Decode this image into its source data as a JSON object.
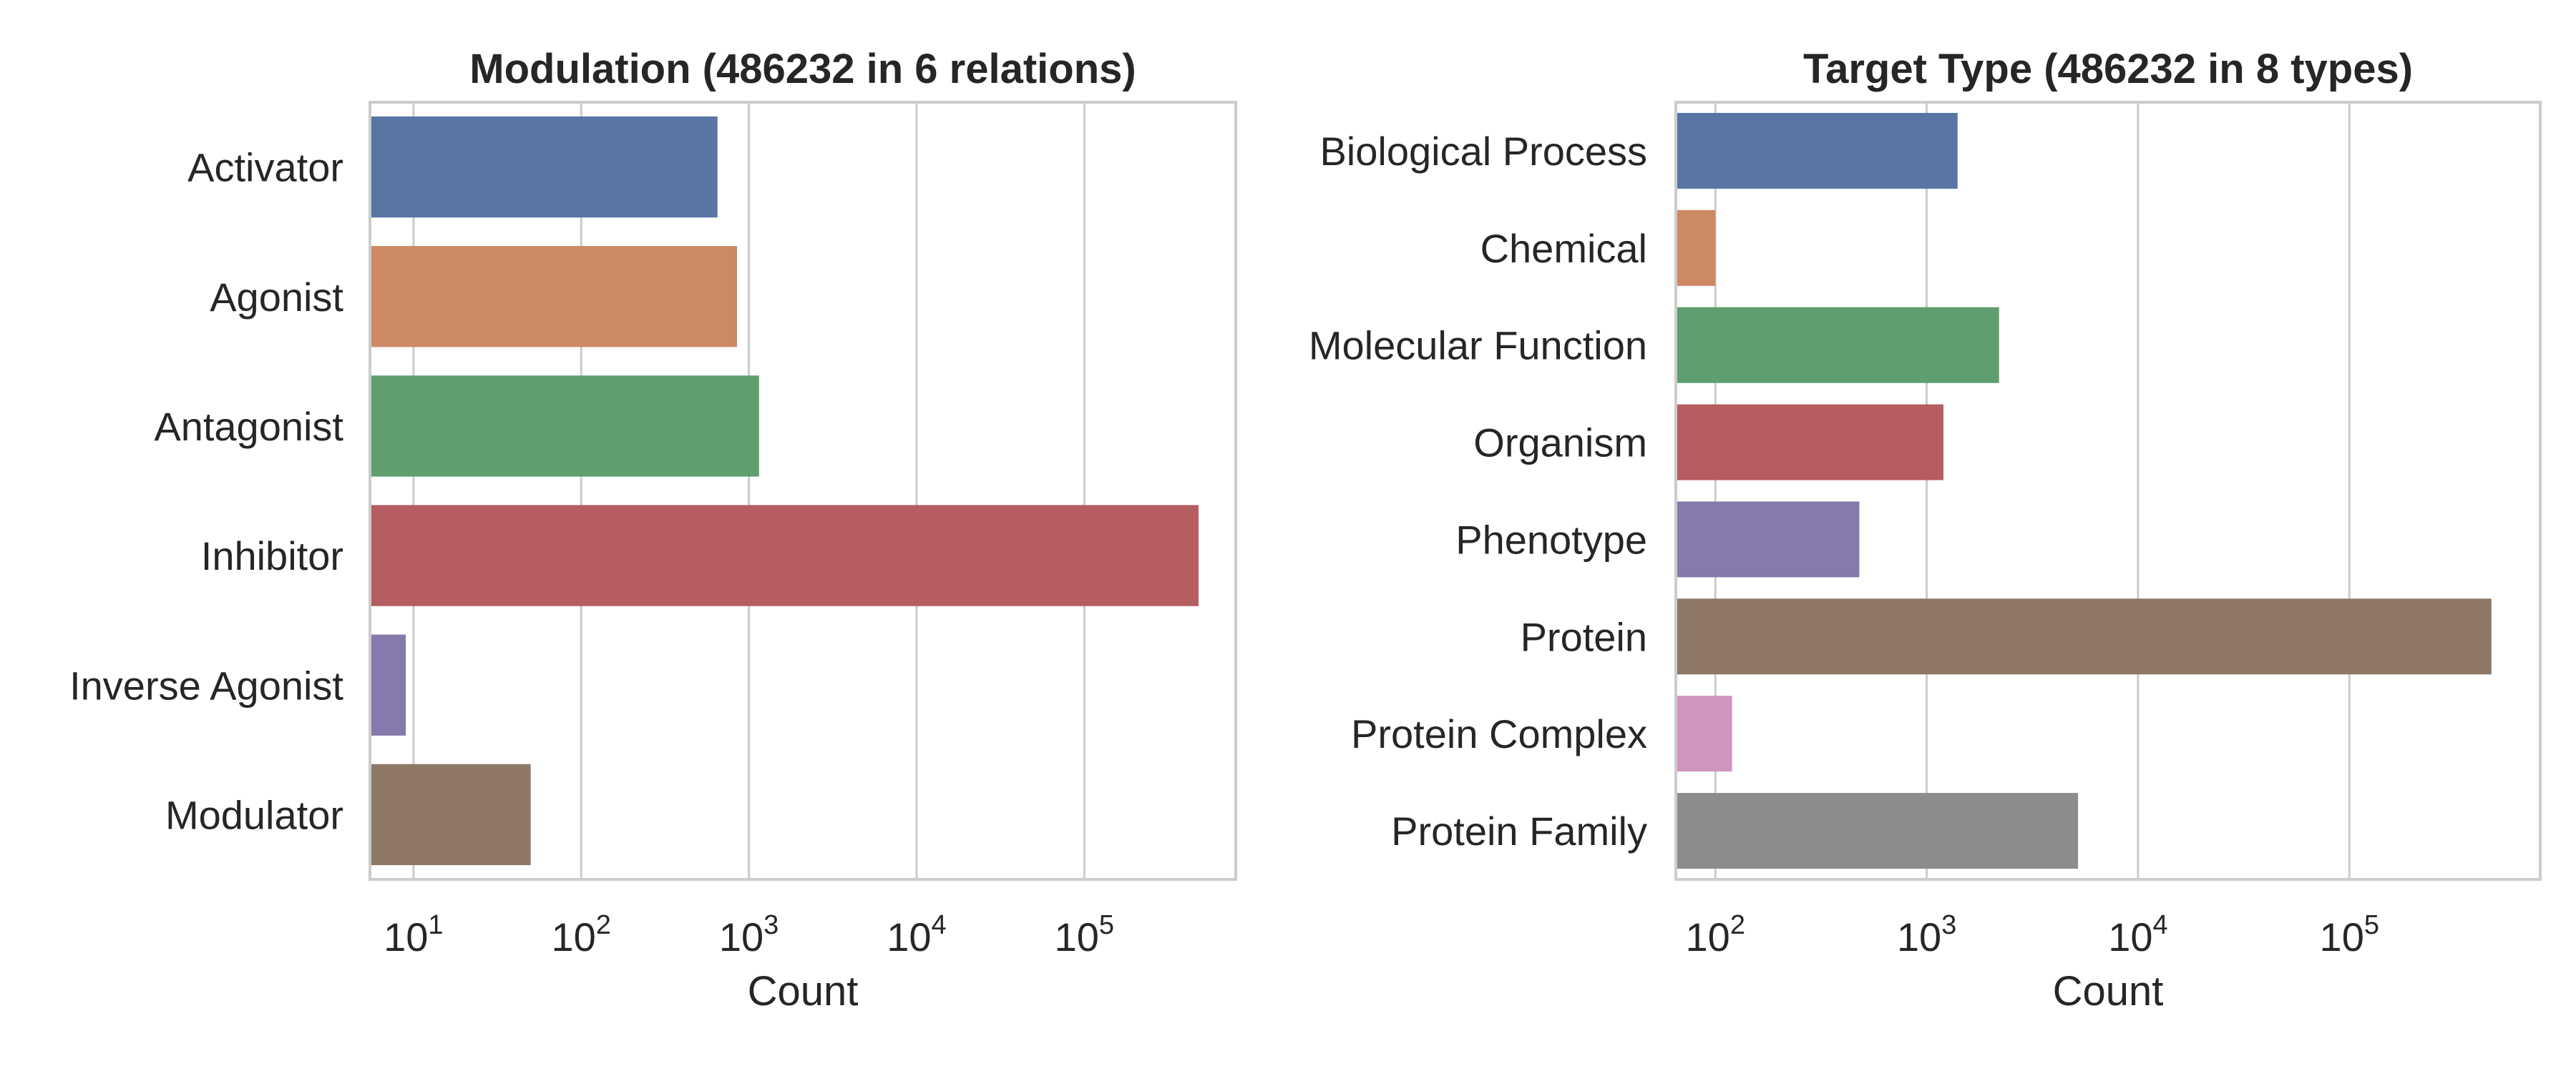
{
  "chart_data": [
    {
      "type": "bar",
      "orientation": "horizontal",
      "title": "Modulation (486232 in 6 relations)",
      "xlabel": "Count",
      "ylabel": "",
      "xscale": "log",
      "xlim": [
        5.5,
        800000
      ],
      "xticks": [
        {
          "base": "10",
          "exp": "1",
          "value": 10
        },
        {
          "base": "10",
          "exp": "2",
          "value": 100
        },
        {
          "base": "10",
          "exp": "3",
          "value": 1000
        },
        {
          "base": "10",
          "exp": "4",
          "value": 10000
        },
        {
          "base": "10",
          "exp": "5",
          "value": 100000
        }
      ],
      "grid": "x",
      "categories": [
        "Activator",
        "Agonist",
        "Antagonist",
        "Inhibitor",
        "Inverse Agonist",
        "Modulator"
      ],
      "values": [
        650,
        850,
        1150,
        480000,
        9,
        50
      ],
      "colors": [
        "#5875a4",
        "#cc8963",
        "#5f9e6e",
        "#b55d60",
        "#857aab",
        "#8d7866"
      ]
    },
    {
      "type": "bar",
      "orientation": "horizontal",
      "title": "Target Type (486232 in 8 types)",
      "xlabel": "Count",
      "ylabel": "",
      "xscale": "log",
      "xlim": [
        65,
        800000
      ],
      "xticks": [
        {
          "base": "10",
          "exp": "2",
          "value": 100
        },
        {
          "base": "10",
          "exp": "3",
          "value": 1000
        },
        {
          "base": "10",
          "exp": "4",
          "value": 10000
        },
        {
          "base": "10",
          "exp": "5",
          "value": 100000
        }
      ],
      "grid": "x",
      "categories": [
        "Biological Process",
        "Chemical",
        "Molecular Function",
        "Organism",
        "Phenotype",
        "Protein",
        "Protein Complex",
        "Protein Family"
      ],
      "values": [
        1400,
        100,
        2200,
        1200,
        480,
        470000,
        120,
        5200
      ],
      "colors": [
        "#5875a4",
        "#cc8963",
        "#5f9e6e",
        "#b55d60",
        "#857aab",
        "#8d7866",
        "#d095bf",
        "#8c8c8c"
      ]
    }
  ]
}
